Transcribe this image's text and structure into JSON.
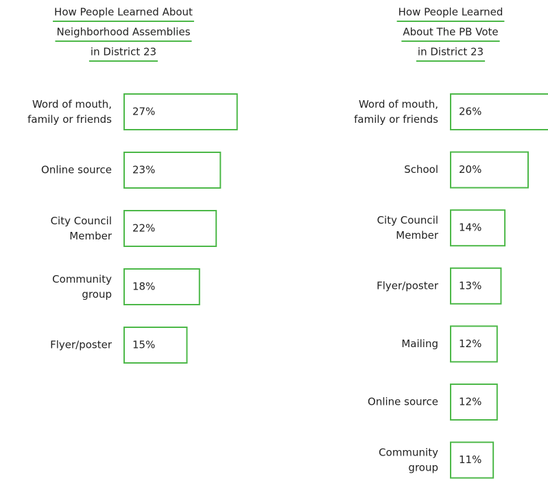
{
  "chart_data": [
    {
      "type": "bar",
      "title": [
        "How People Learned About",
        "Neighborhood Assemblies",
        "in District 23"
      ],
      "categories": [
        "Word of mouth,\nfamily or friends",
        "Online source",
        "City Council\nMember",
        "Community\ngroup",
        "Flyer/poster"
      ],
      "values": [
        27,
        23,
        22,
        18,
        15
      ],
      "value_labels": [
        "27%",
        "23%",
        "22%",
        "18%",
        "15%"
      ],
      "color": "#4cb848"
    },
    {
      "type": "bar",
      "title": [
        "How People Learned",
        "About The PB Vote",
        "in District 23"
      ],
      "categories": [
        "Word of mouth,\nfamily or friends",
        "School",
        "City Council\nMember",
        "Flyer/poster",
        "Mailing",
        "Online source",
        "Community\ngroup"
      ],
      "values": [
        26,
        20,
        14,
        13,
        12,
        12,
        11
      ],
      "value_labels": [
        "26%",
        "20%",
        "14%",
        "13%",
        "12%",
        "12%",
        "11%"
      ],
      "color": "#4cb848"
    }
  ]
}
